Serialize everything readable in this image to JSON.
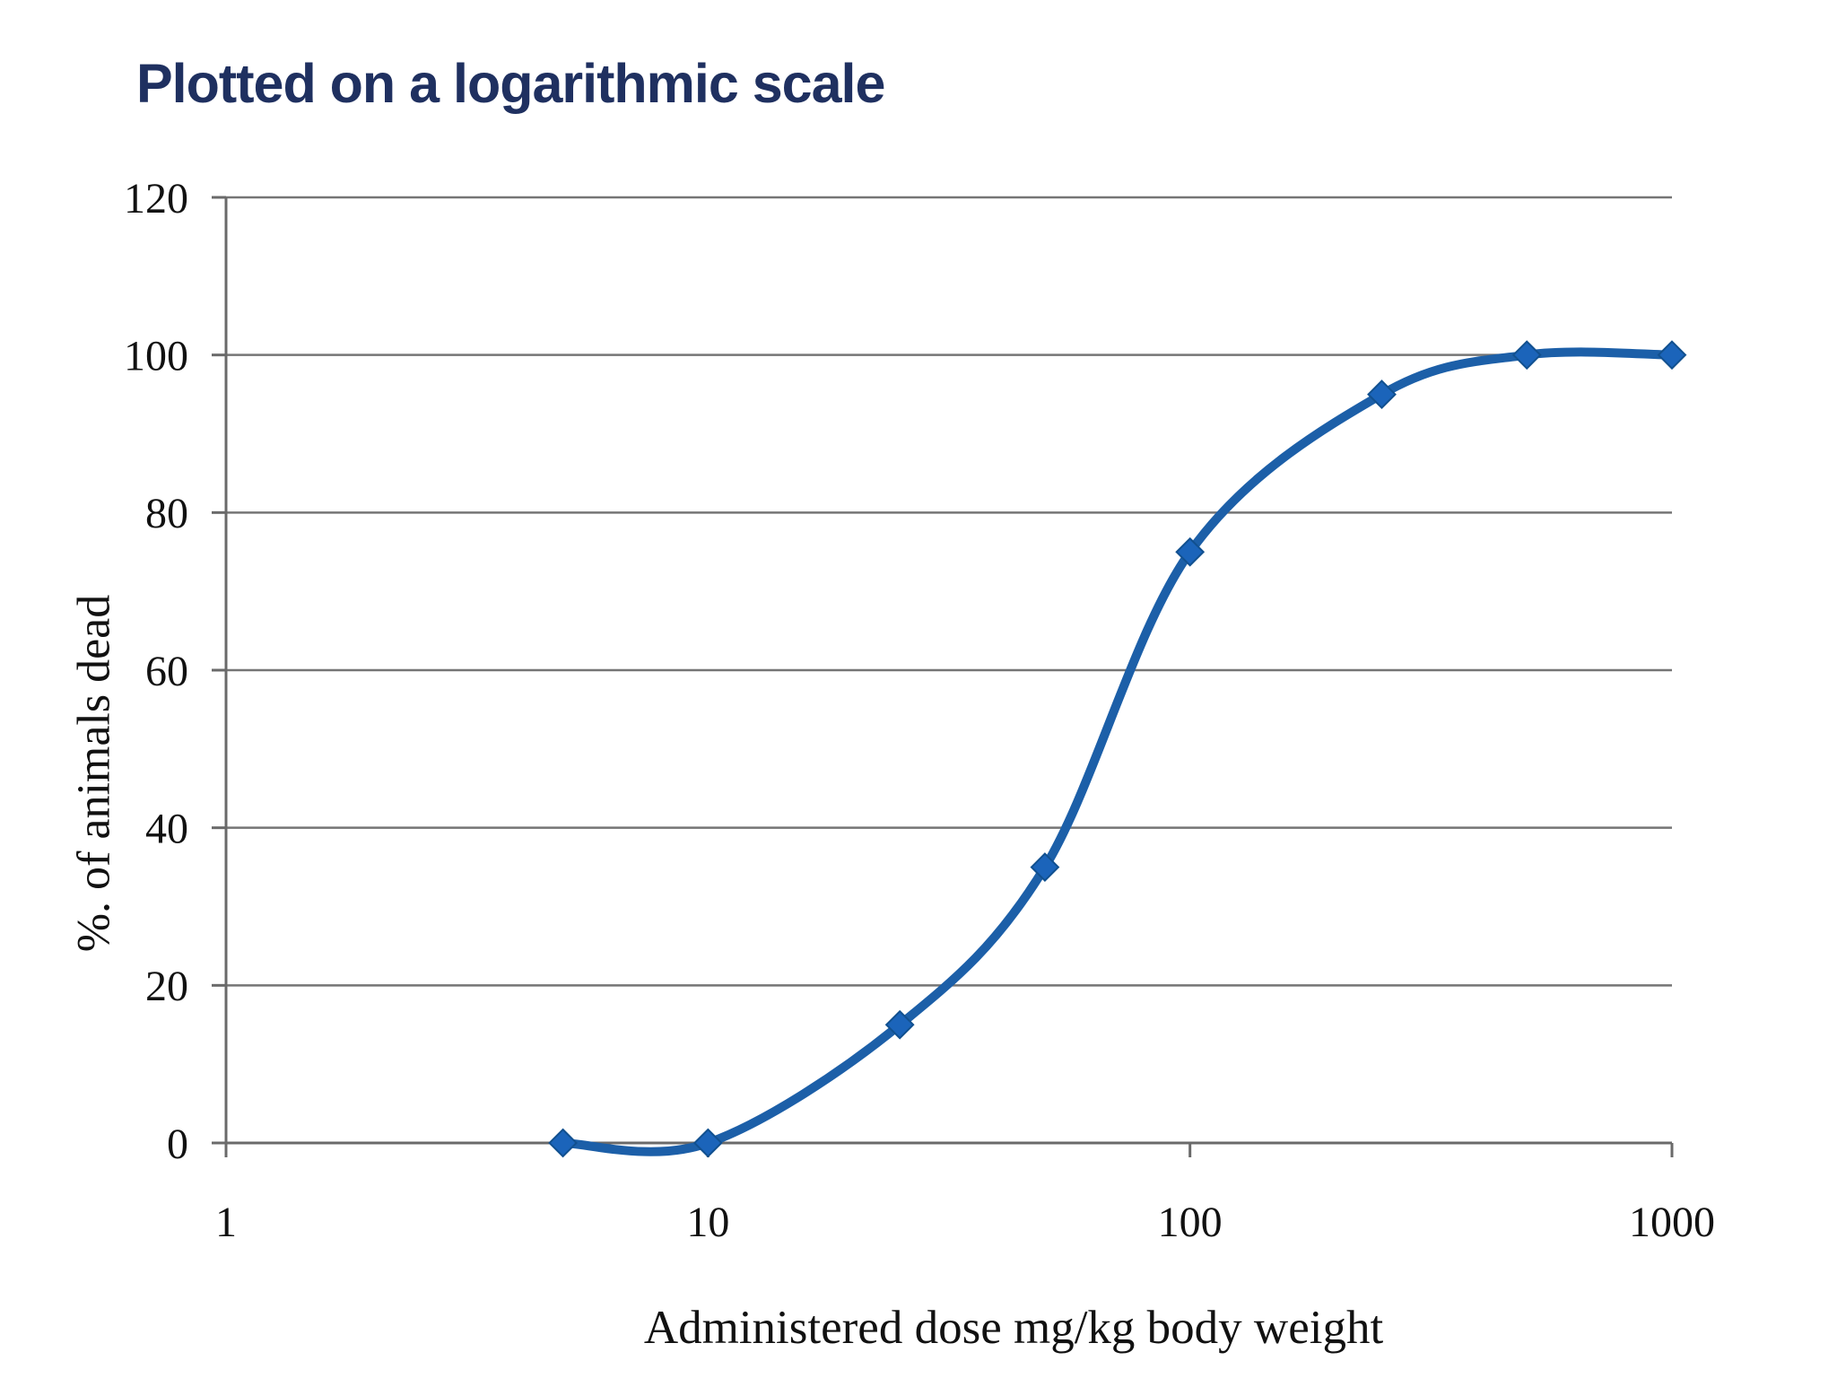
{
  "page": {
    "background": "#FFFFFF"
  },
  "title": {
    "text": "Plotted on a logarithmic scale",
    "color": "#1F3060"
  },
  "chart_data": {
    "type": "line",
    "title": "Plotted on a logarithmic scale",
    "xlabel": "Administered dose mg/kg body weight",
    "ylabel": "%. of animals dead",
    "x_scale": "log",
    "x": [
      5,
      10,
      25,
      50,
      100,
      250,
      500,
      1000
    ],
    "series": [
      {
        "name": "% of animals dead",
        "values": [
          0,
          0,
          15,
          35,
          75,
          95,
          100,
          100
        ]
      }
    ],
    "xlim": [
      1,
      1000
    ],
    "ylim": [
      0,
      120
    ],
    "x_ticks": [
      "1",
      "10",
      "100",
      "1000"
    ],
    "y_ticks": [
      "0",
      "20",
      "40",
      "60",
      "80",
      "100",
      "120"
    ],
    "grid": "horizontal-only",
    "legend": "none",
    "marker": "diamond",
    "smooth": true,
    "line_color": "#1C5FA8",
    "marker_color": "#1B64BA",
    "marker_border_color": "#11508F",
    "grid_color": "#757575",
    "axis_color": "#6A6A6A",
    "tick_label_color": "#111111"
  }
}
